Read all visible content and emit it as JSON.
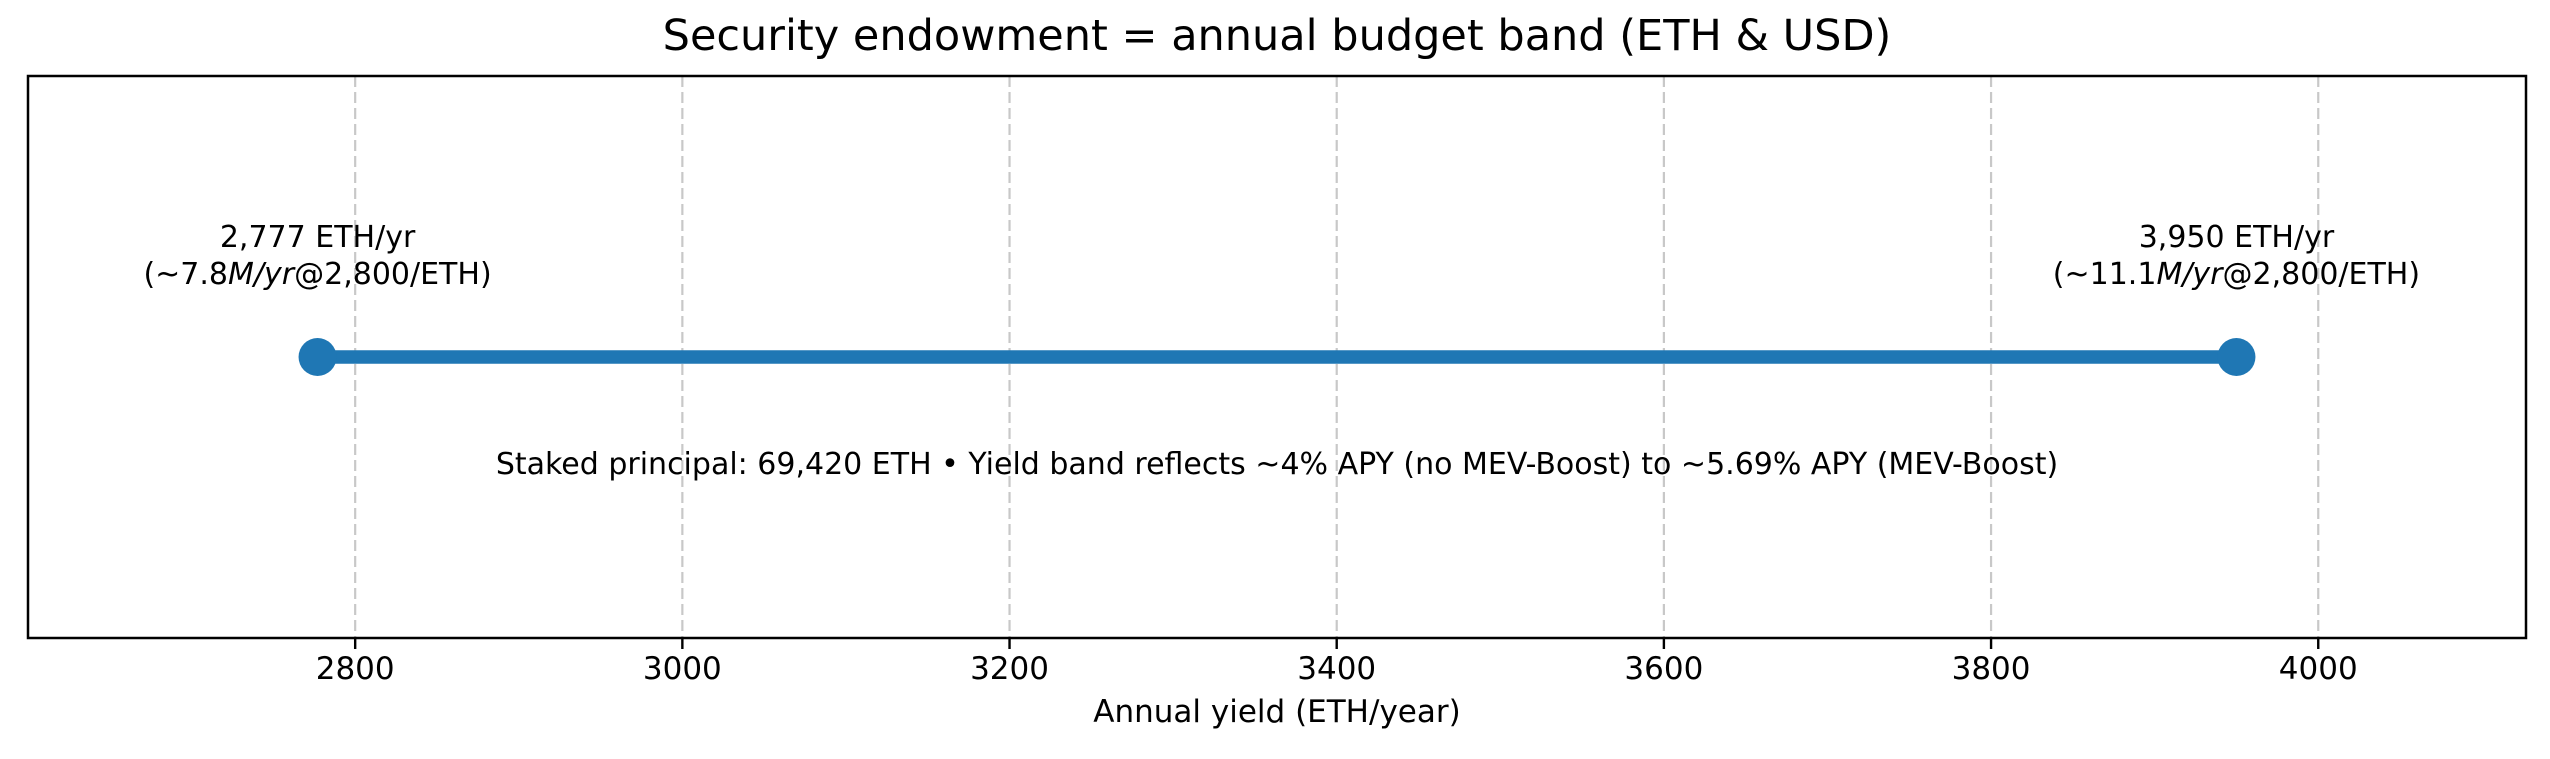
{
  "colors": {
    "band": "#1f77b4",
    "grid": "#c8c8c8",
    "axes": "#000000",
    "text": "#000000",
    "background": "#ffffff"
  },
  "chart_data": {
    "type": "line",
    "subtype": "horizontal range band (dumbbell) with circular endpoint markers",
    "title": "Security endowment = annual budget band (ETH & USD)",
    "xlabel": "Annual yield (ETH/year)",
    "xlim": [
      2600,
      4127
    ],
    "xticks": [
      2800,
      3000,
      3200,
      3400,
      3600,
      3800,
      4000
    ],
    "grid": {
      "axis": "x",
      "style": "dashed",
      "color": "#c8c8c8"
    },
    "series": [
      {
        "name": "annual budget band",
        "color": "#1f77b4",
        "x_start": 2777,
        "x_end": 3950,
        "y_position": "vertical center of axes",
        "markers": "filled circles at both endpoints"
      }
    ],
    "annotations": [
      {
        "id": "min-endpoint",
        "x": 2777,
        "line1": "2,777 ETH/yr",
        "line2_prefix": "(~7.8",
        "line2_italic": "M/yr",
        "line2_suffix": "@2,800/ETH)"
      },
      {
        "id": "max-endpoint",
        "x": 3950,
        "line1": "3,950 ETH/yr",
        "line2_prefix": "(~11.1",
        "line2_italic": "M/yr",
        "line2_suffix": "@2,800/ETH)"
      }
    ],
    "note": "Staked principal: 69,420 ETH • Yield band reflects ~4% APY (no MEV-Boost) to ~5.69% APY (MEV-Boost)"
  }
}
